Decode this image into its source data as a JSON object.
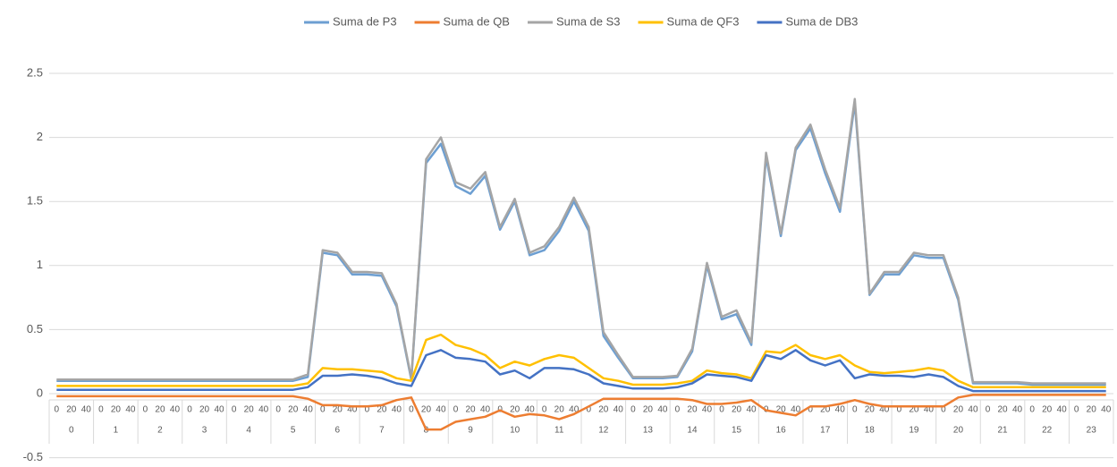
{
  "chart_data": {
    "type": "line",
    "legend": "top",
    "grid": true,
    "ylim": [
      -0.5,
      2.5
    ],
    "yticks": [
      -0.5,
      0,
      0.5,
      1,
      1.5,
      2,
      2.5
    ],
    "categories": [
      "0",
      "20",
      "40",
      "0",
      "20",
      "40",
      "0",
      "20",
      "40",
      "0",
      "20",
      "40",
      "0",
      "20",
      "40",
      "0",
      "20",
      "40",
      "0",
      "20",
      "40",
      "0",
      "20",
      "40",
      "0",
      "20",
      "40",
      "0",
      "20",
      "40",
      "0",
      "20",
      "40",
      "0",
      "20",
      "40",
      "0",
      "20",
      "40",
      "0",
      "20",
      "40",
      "0",
      "20",
      "40",
      "0",
      "20",
      "40",
      "0",
      "20",
      "40",
      "0",
      "20",
      "40",
      "0",
      "20",
      "40",
      "0",
      "20",
      "40",
      "0",
      "20",
      "40",
      "0",
      "20",
      "40",
      "0",
      "20",
      "40",
      "0",
      "20",
      "40"
    ],
    "groups": [
      "0",
      "1",
      "2",
      "3",
      "4",
      "5",
      "6",
      "7",
      "8",
      "9",
      "10",
      "11",
      "12",
      "13",
      "14",
      "15",
      "16",
      "17",
      "18",
      "19",
      "20",
      "21",
      "22",
      "23"
    ],
    "series": [
      {
        "name": "Suma de P3",
        "color": "#6d9fd2",
        "values": [
          0.1,
          0.1,
          0.1,
          0.1,
          0.1,
          0.1,
          0.1,
          0.1,
          0.1,
          0.1,
          0.1,
          0.1,
          0.1,
          0.1,
          0.1,
          0.1,
          0.1,
          0.13,
          1.1,
          1.08,
          0.93,
          0.93,
          0.92,
          0.68,
          0.11,
          1.8,
          1.95,
          1.62,
          1.56,
          1.7,
          1.28,
          1.5,
          1.08,
          1.12,
          1.27,
          1.5,
          1.27,
          0.45,
          0.28,
          0.12,
          0.12,
          0.12,
          0.13,
          0.33,
          1.0,
          0.58,
          0.62,
          0.38,
          1.85,
          1.23,
          1.9,
          2.07,
          1.72,
          1.42,
          2.27,
          0.77,
          0.93,
          0.93,
          1.08,
          1.06,
          1.06,
          0.73,
          0.08,
          0.08,
          0.08,
          0.08,
          0.07,
          0.07,
          0.07,
          0.07,
          0.07,
          0.07
        ]
      },
      {
        "name": "Suma de QB",
        "color": "#ed7d31",
        "values": [
          -0.02,
          -0.02,
          -0.02,
          -0.02,
          -0.02,
          -0.02,
          -0.02,
          -0.02,
          -0.02,
          -0.02,
          -0.02,
          -0.02,
          -0.02,
          -0.02,
          -0.02,
          -0.02,
          -0.02,
          -0.04,
          -0.09,
          -0.09,
          -0.1,
          -0.1,
          -0.09,
          -0.05,
          -0.03,
          -0.28,
          -0.28,
          -0.22,
          -0.2,
          -0.18,
          -0.13,
          -0.18,
          -0.16,
          -0.17,
          -0.2,
          -0.16,
          -0.1,
          -0.04,
          -0.04,
          -0.04,
          -0.04,
          -0.04,
          -0.04,
          -0.05,
          -0.08,
          -0.08,
          -0.07,
          -0.05,
          -0.13,
          -0.15,
          -0.17,
          -0.1,
          -0.1,
          -0.08,
          -0.05,
          -0.08,
          -0.1,
          -0.1,
          -0.1,
          -0.1,
          -0.1,
          -0.03,
          -0.01,
          -0.01,
          -0.01,
          -0.01,
          -0.01,
          -0.01,
          -0.01,
          -0.01,
          -0.01,
          -0.01
        ]
      },
      {
        "name": "Suma de S3",
        "color": "#a5a5a5",
        "values": [
          0.11,
          0.11,
          0.11,
          0.11,
          0.11,
          0.11,
          0.11,
          0.11,
          0.11,
          0.11,
          0.11,
          0.11,
          0.11,
          0.11,
          0.11,
          0.11,
          0.11,
          0.15,
          1.12,
          1.1,
          0.95,
          0.95,
          0.94,
          0.7,
          0.12,
          1.83,
          2.0,
          1.65,
          1.6,
          1.73,
          1.3,
          1.52,
          1.1,
          1.15,
          1.3,
          1.53,
          1.3,
          0.48,
          0.3,
          0.13,
          0.13,
          0.13,
          0.14,
          0.35,
          1.02,
          0.6,
          0.65,
          0.4,
          1.88,
          1.25,
          1.92,
          2.1,
          1.75,
          1.45,
          2.3,
          0.78,
          0.95,
          0.95,
          1.1,
          1.08,
          1.08,
          0.75,
          0.09,
          0.09,
          0.09,
          0.09,
          0.08,
          0.08,
          0.08,
          0.08,
          0.08,
          0.08
        ]
      },
      {
        "name": "Suma de QF3",
        "color": "#ffc000",
        "values": [
          0.06,
          0.06,
          0.06,
          0.06,
          0.06,
          0.06,
          0.06,
          0.06,
          0.06,
          0.06,
          0.06,
          0.06,
          0.06,
          0.06,
          0.06,
          0.06,
          0.06,
          0.08,
          0.2,
          0.19,
          0.19,
          0.18,
          0.17,
          0.12,
          0.1,
          0.42,
          0.46,
          0.38,
          0.35,
          0.3,
          0.2,
          0.25,
          0.22,
          0.27,
          0.3,
          0.28,
          0.2,
          0.12,
          0.1,
          0.07,
          0.07,
          0.07,
          0.08,
          0.1,
          0.18,
          0.16,
          0.15,
          0.12,
          0.33,
          0.32,
          0.38,
          0.3,
          0.27,
          0.3,
          0.22,
          0.17,
          0.16,
          0.17,
          0.18,
          0.2,
          0.18,
          0.1,
          0.05,
          0.05,
          0.05,
          0.05,
          0.05,
          0.05,
          0.05,
          0.05,
          0.05,
          0.05
        ]
      },
      {
        "name": "Suma de DB3",
        "color": "#4472c4",
        "values": [
          0.03,
          0.03,
          0.03,
          0.03,
          0.03,
          0.03,
          0.03,
          0.03,
          0.03,
          0.03,
          0.03,
          0.03,
          0.03,
          0.03,
          0.03,
          0.03,
          0.03,
          0.05,
          0.14,
          0.14,
          0.15,
          0.14,
          0.12,
          0.08,
          0.06,
          0.3,
          0.34,
          0.28,
          0.27,
          0.25,
          0.15,
          0.18,
          0.12,
          0.2,
          0.2,
          0.19,
          0.15,
          0.08,
          0.06,
          0.04,
          0.04,
          0.04,
          0.05,
          0.08,
          0.15,
          0.14,
          0.13,
          0.1,
          0.3,
          0.27,
          0.34,
          0.26,
          0.22,
          0.26,
          0.12,
          0.15,
          0.14,
          0.14,
          0.13,
          0.15,
          0.13,
          0.06,
          0.02,
          0.02,
          0.02,
          0.02,
          0.02,
          0.02,
          0.02,
          0.02,
          0.02,
          0.02
        ]
      }
    ]
  }
}
